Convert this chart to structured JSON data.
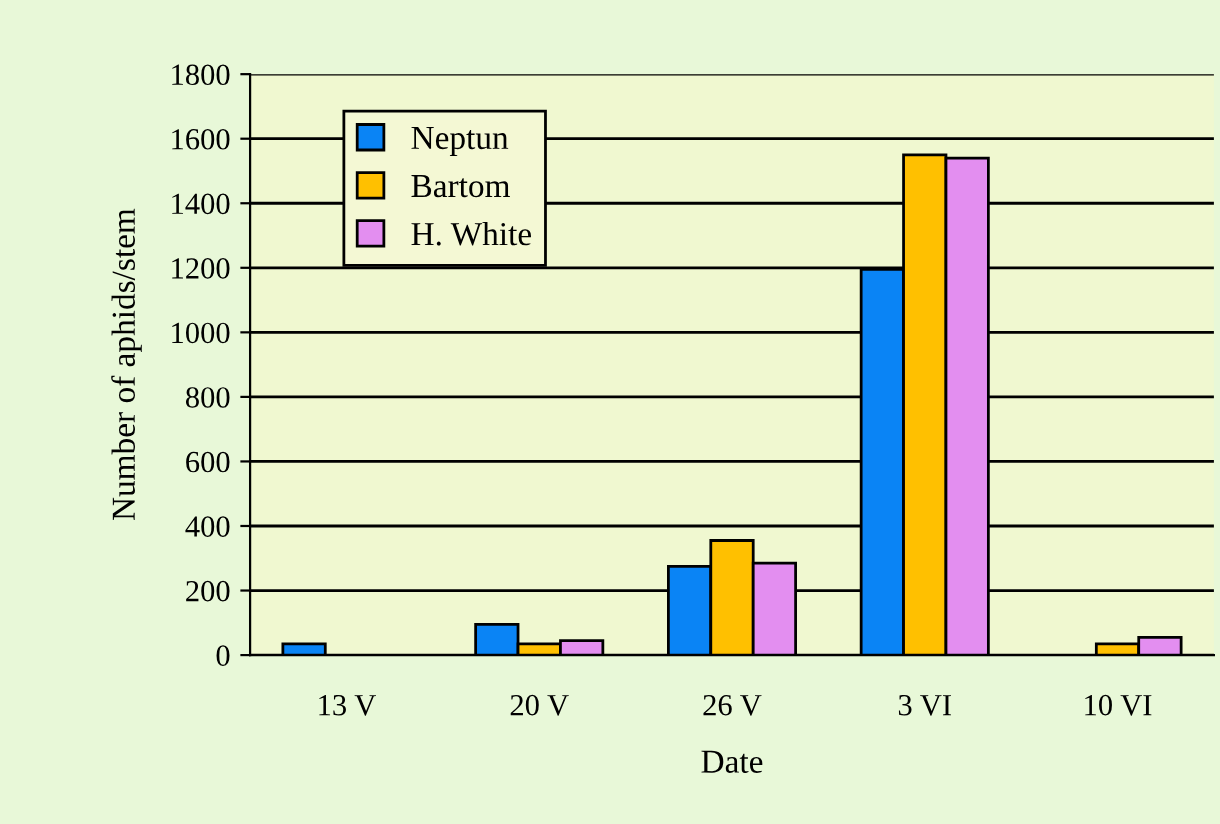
{
  "chart_data": {
    "type": "bar",
    "xlabel": "Date",
    "ylabel": "Number of aphids/stem",
    "categories": [
      "13 V",
      "20 V",
      "26 V",
      "3 VI",
      "10 VI"
    ],
    "series": [
      {
        "name": "Neptun",
        "color": "#0a84f5",
        "values": [
          35,
          95,
          275,
          1195,
          null
        ]
      },
      {
        "name": "Bartom",
        "color": "#ffc000",
        "values": [
          null,
          35,
          355,
          1550,
          35
        ]
      },
      {
        "name": "H. White",
        "color": "#e38ef0",
        "values": [
          null,
          45,
          285,
          1540,
          55
        ]
      }
    ],
    "ylim": [
      0,
      1800
    ],
    "yticks": [
      0,
      200,
      400,
      600,
      800,
      1000,
      1200,
      1400,
      1600,
      1800
    ],
    "grid": "y",
    "legend": "top left"
  }
}
